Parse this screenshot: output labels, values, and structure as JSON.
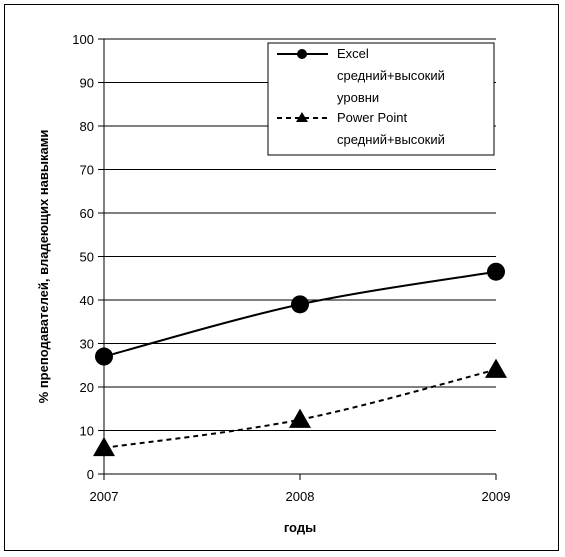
{
  "chart_data": {
    "type": "line",
    "categories": [
      "2007",
      "2008",
      "2009"
    ],
    "series": [
      {
        "name": "Excel средний+высокий уровни",
        "legend_lines": [
          "Excel",
          "средний+высокий",
          "уровни"
        ],
        "values": [
          27,
          39,
          46.5
        ],
        "marker": "circle",
        "line_style": "solid",
        "color": "#000000"
      },
      {
        "name": "Power Point средний+высокий",
        "legend_lines": [
          "Power Point",
          "средний+высокий"
        ],
        "values": [
          6,
          12.5,
          24
        ],
        "marker": "triangle",
        "line_style": "dashed",
        "color": "#000000"
      }
    ],
    "xlabel": "годы",
    "ylabel": "% преподавателей, владеющих навыками",
    "ylim": [
      0,
      100
    ],
    "yticks": [
      "0",
      "10",
      "20",
      "30",
      "40",
      "50",
      "60",
      "70",
      "80",
      "90",
      "100"
    ],
    "grid": "horizontal",
    "legend_position": "top-right"
  }
}
